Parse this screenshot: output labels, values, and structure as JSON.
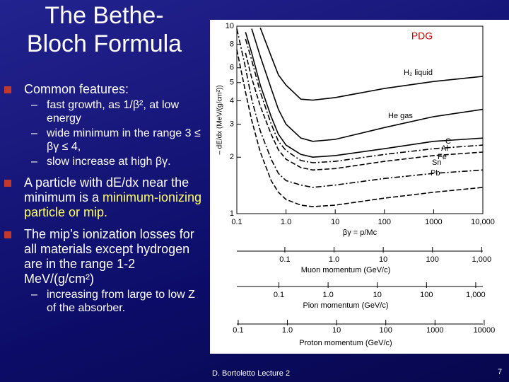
{
  "title": [
    "The Bethe-",
    "Bloch Formula"
  ],
  "bullets": [
    {
      "text": "Common features:",
      "subs": [
        "fast growth, as 1/β², at low energy",
        "wide minimum in the range 3 ≤ βγ ≤ 4,",
        "slow increase at high βγ."
      ]
    },
    {
      "text": "A particle with dE/dx near the minimum is a ",
      "highlight": "minimum-ionizing particle or mip."
    },
    {
      "text": "The mip’s ionization losses for all materials except hydrogen are in the range 1-2 MeV/(g/cm²)",
      "subs": [
        "increasing from large to low Z of the absorber."
      ]
    }
  ],
  "footer": {
    "author": "D. Bortoletto Lecture 2",
    "page": "7"
  },
  "chart_data": {
    "type": "line",
    "annotation": "PDG",
    "xlabel": "βγ = p/Mc",
    "ylabel": "– dE/dx (MeV/(g/cm²))",
    "xscale": "log",
    "yscale": "log",
    "xlim": [
      0.1,
      10000
    ],
    "ylim": [
      1,
      10
    ],
    "xticks": [
      0.1,
      {
        "value": 1,
        "label": "1.0"
      },
      10,
      100,
      1000,
      {
        "value": 10000,
        "label": "10,000"
      }
    ],
    "yticks": [
      1,
      2,
      3,
      4,
      5,
      6,
      8,
      10
    ],
    "x": [
      0.1,
      0.15,
      0.2,
      0.3,
      0.5,
      0.7,
      1,
      2,
      3.5,
      10,
      100,
      1000,
      10000
    ],
    "series": [
      {
        "name": "H₂ liquid",
        "color": "#000000",
        "linestyle": "solid",
        "values": [
          null,
          null,
          null,
          9.8,
          6.9,
          5.5,
          4.85,
          4.08,
          4.03,
          4.16,
          4.65,
          5.07,
          5.4
        ]
      },
      {
        "name": "He gas",
        "color": "#000000",
        "linestyle": "solid",
        "values": [
          null,
          null,
          9.7,
          6.9,
          4.65,
          3.6,
          3.0,
          2.53,
          2.43,
          2.49,
          2.88,
          3.29,
          3.6
        ]
      },
      {
        "name": "C",
        "color": "#000000",
        "linestyle": "solid",
        "values": [
          null,
          9.3,
          7.2,
          4.85,
          3.29,
          2.65,
          2.32,
          2.07,
          2.0,
          2.04,
          2.22,
          2.43,
          2.53
        ]
      },
      {
        "name": "Al",
        "color": "#000000",
        "linestyle": "dashdot",
        "values": [
          null,
          8.55,
          6.6,
          4.45,
          3.01,
          2.43,
          2.17,
          1.92,
          1.87,
          1.9,
          2.07,
          2.22,
          2.32
        ]
      },
      {
        "name": "Fe",
        "color": "#000000",
        "linestyle": "dashed",
        "values": [
          null,
          7.2,
          5.3,
          3.74,
          2.65,
          2.19,
          1.95,
          1.76,
          1.71,
          1.74,
          1.9,
          2.04,
          2.13
        ]
      },
      {
        "name": "Sn",
        "color": "#000000",
        "linestyle": "dashdot",
        "values": [
          9.7,
          6.0,
          4.08,
          2.76,
          1.95,
          1.64,
          1.5,
          1.42,
          1.38,
          1.42,
          1.54,
          1.64,
          1.71
        ]
      },
      {
        "name": "Pb",
        "color": "#000000",
        "linestyle": "dashed",
        "values": [
          7.5,
          4.45,
          3.15,
          2.13,
          1.5,
          1.3,
          1.19,
          1.11,
          1.09,
          1.11,
          1.21,
          1.3,
          1.38
        ]
      }
    ],
    "momentum_axes": [
      {
        "title": "Muon momentum (GeV/c)",
        "xlim": [
          0.01057,
          1057
        ],
        "ticks": [
          0.1,
          {
            "value": 1,
            "label": "1.0"
          },
          10,
          100,
          {
            "value": 1000,
            "label": "1,000"
          }
        ]
      },
      {
        "title": "Pion momentum (GeV/c)",
        "xlim": [
          0.01396,
          1396
        ],
        "ticks": [
          0.1,
          {
            "value": 1,
            "label": "1.0"
          },
          10,
          100,
          {
            "value": 1000,
            "label": "1,000"
          }
        ]
      },
      {
        "title": "Proton momentum (GeV/c)",
        "xlim": [
          0.0938,
          9383
        ],
        "ticks": [
          0.1,
          {
            "value": 1,
            "label": "1.0"
          },
          10,
          100,
          1000,
          10000
        ]
      }
    ]
  }
}
